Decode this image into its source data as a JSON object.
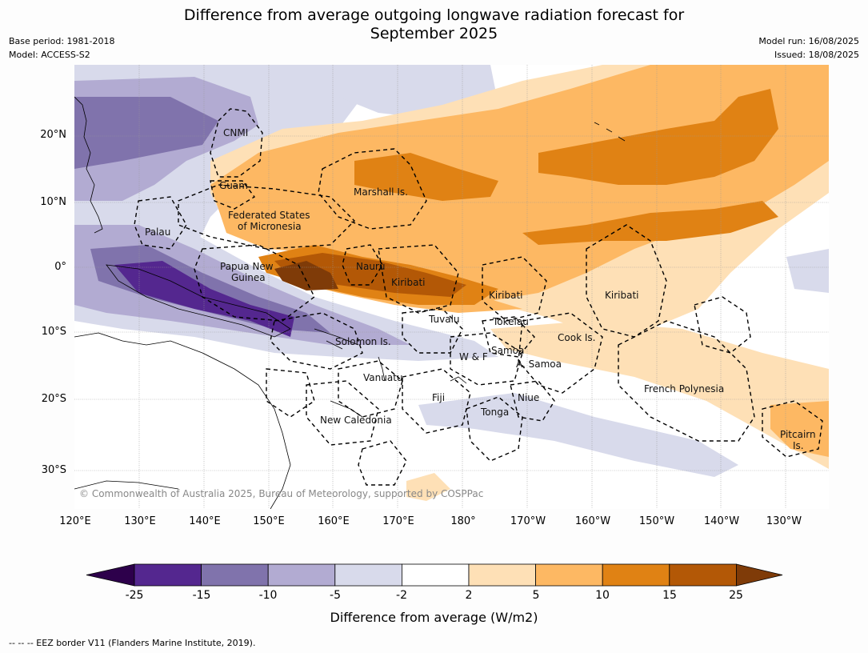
{
  "title_line1": "Difference from average outgoing longwave radiation forecast for",
  "title_line2": "September 2025",
  "meta_left": [
    "Base period: 1981-2018",
    "Model: ACCESS-S2"
  ],
  "meta_right": [
    "Model run: 16/08/2025",
    "Issued: 18/08/2025"
  ],
  "lat_labels": [
    "20°N",
    "10°N",
    "0°",
    "10°S",
    "20°S",
    "30°S"
  ],
  "lon_labels": [
    "120°E",
    "130°E",
    "140°E",
    "150°E",
    "160°E",
    "170°E",
    "180°",
    "170°W",
    "160°W",
    "150°W",
    "140°W",
    "130°W"
  ],
  "map_labels": [
    "CNMI",
    "Guam",
    "Marshall Is.",
    "Federated States",
    "of Micronesia",
    "Palau",
    "Papua New",
    "Guinea",
    "Nauru",
    "Kiribati",
    "Kiribati",
    "Kiribati",
    "Tuvalu",
    "Tokelau",
    "Cook Is.",
    "Solomon Is.",
    "W & F",
    "Samoa",
    "A. Samoa",
    "Vanuatu",
    "Fiji",
    "Niue",
    "Tonga",
    "New Caledonia",
    "French Polynesia",
    "Pitcairn",
    "Is."
  ],
  "copyright": "© Commonwealth of Australia 2025, Bureau of Meteorology, supported by COSPPac",
  "colorbar": {
    "title": "Difference from average (W/m2)",
    "ticks": [
      "-25",
      "-15",
      "-10",
      "-5",
      "-2",
      "2",
      "5",
      "10",
      "15",
      "25"
    ],
    "colors": [
      "#54278f",
      "#8073ac",
      "#b2abd2",
      "#d8daeb",
      "#ffffff",
      "#fee0b6",
      "#fdb863",
      "#e08214",
      "#b35806"
    ],
    "under_color": "#2d004b",
    "over_color": "#7f3b08"
  },
  "footnote": "--  --  -- EEZ border V11 (Flanders Marine Institute, 2019)."
}
